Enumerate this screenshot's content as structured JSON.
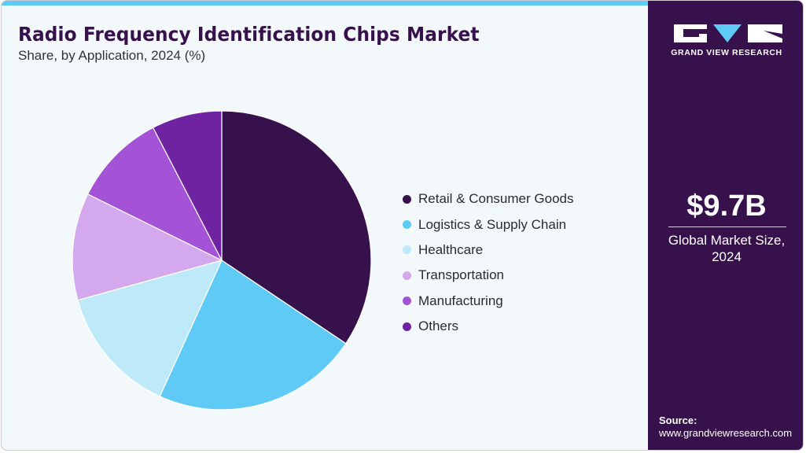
{
  "header": {
    "title": "Radio Frequency Identification Chips Market",
    "subtitle": "Share, by Application, 2024 (%)"
  },
  "colors": {
    "accent_bar": "#5ecaf5",
    "sidebar_bg": "#37114b",
    "title_color": "#37114b",
    "background": "#f3f8fb"
  },
  "chart_data": {
    "type": "pie",
    "title": "Radio Frequency Identification Chips Market",
    "subtitle": "Share, by Application, 2024 (%)",
    "categories": [
      "Retail & Consumer Goods",
      "Logistics & Supply Chain",
      "Healthcare",
      "Transportation",
      "Manufacturing",
      "Others"
    ],
    "values": [
      34.4,
      22.4,
      13.9,
      11.6,
      10.1,
      7.6
    ],
    "colors": [
      "#37114b",
      "#5ecaf5",
      "#bde9f8",
      "#d4a8ec",
      "#a453d6",
      "#7023a0"
    ],
    "start_angle_deg": 0,
    "direction": "clockwise",
    "legend_position": "right",
    "data_labels": false
  },
  "legend": {
    "items": [
      {
        "label": "Retail & Consumer Goods",
        "color": "#37114b"
      },
      {
        "label": "Logistics & Supply Chain",
        "color": "#5ecaf5"
      },
      {
        "label": "Healthcare",
        "color": "#bde9f8"
      },
      {
        "label": "Transportation",
        "color": "#d4a8ec"
      },
      {
        "label": "Manufacturing",
        "color": "#a453d6"
      },
      {
        "label": "Others",
        "color": "#7023a0"
      }
    ]
  },
  "sidebar": {
    "logo_text": "GRAND VIEW RESEARCH",
    "market_value": "$9.7B",
    "market_label_line1": "Global Market Size,",
    "market_label_line2": "2024",
    "source_label": "Source:",
    "source_url": "www.grandviewresearch.com"
  }
}
